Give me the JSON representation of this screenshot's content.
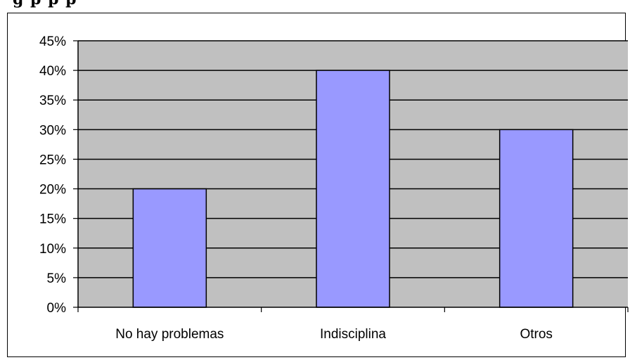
{
  "header_fragment": "g                                      p     p  p",
  "chart_data": {
    "type": "bar",
    "categories": [
      "No hay problemas",
      "Indisciplina",
      "Otros"
    ],
    "values": [
      20,
      40,
      30
    ],
    "ylim": [
      0,
      45
    ],
    "y_ticks": [
      "0%",
      "5%",
      "10%",
      "15%",
      "20%",
      "25%",
      "30%",
      "35%",
      "40%",
      "45%"
    ],
    "grid": true,
    "legend": "none",
    "colors": {
      "bar": "#9999ff",
      "plot_bg": "#c0c0c0",
      "grid": "#000000"
    }
  }
}
